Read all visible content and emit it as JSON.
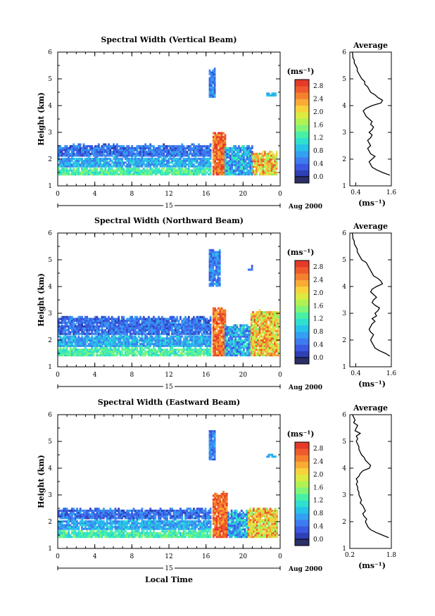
{
  "colors": {
    "scale": [
      "#2b2f66",
      "#2f3fb6",
      "#3a58e0",
      "#3f7bf0",
      "#34a0f2",
      "#27c3e8",
      "#2fe0cf",
      "#47f0a5",
      "#7ff579",
      "#b0f253",
      "#dcea3f",
      "#f7d23d",
      "#f9ab35",
      "#f5812f",
      "#ee5a2c",
      "#e53a2a"
    ],
    "axis": "#000000",
    "empty": "#ffffff"
  },
  "chart_data": [
    {
      "type": "heatmap",
      "id": "vertical",
      "title": "Spectral Width (Vertical Beam)",
      "ylabel": "Height (km)",
      "x_ticks": [
        "0",
        "4",
        "8",
        "12",
        "16",
        "20",
        "0"
      ],
      "x_range": [
        0,
        24
      ],
      "y_ticks": [
        "1",
        "2",
        "3",
        "4",
        "5",
        "6"
      ],
      "y_range": [
        1,
        6
      ],
      "date_label": "15",
      "month_label": "Aug 2000",
      "xlabel": "",
      "colorbar": {
        "unit": "(ms⁻¹)",
        "ticks": [
          "2.8",
          "2.4",
          "2.0",
          "1.6",
          "1.2",
          "0.8",
          "0.4",
          "0.0"
        ],
        "range": [
          0,
          3.0
        ]
      },
      "average": {
        "title": "Average",
        "unit": "(ms⁻¹)",
        "x_ticks": [
          "0.4",
          "1.6"
        ],
        "x_range": [
          0.2,
          1.6
        ],
        "heights": [
          1.4,
          1.5,
          1.6,
          1.7,
          1.8,
          1.9,
          2.0,
          2.1,
          2.2,
          2.3,
          2.4,
          2.5,
          2.6,
          2.7,
          2.8,
          2.9,
          3.0,
          3.1,
          3.2,
          3.3,
          3.4,
          3.5,
          3.6,
          3.7,
          3.8,
          3.9,
          4.0,
          4.1,
          4.2,
          4.3,
          4.4,
          4.5,
          4.6,
          4.7,
          4.8,
          4.9,
          5.0,
          5.1,
          5.2,
          5.3,
          5.4,
          5.5,
          5.6,
          5.7,
          5.8,
          5.9,
          6.0
        ],
        "values": [
          1.55,
          1.3,
          1.1,
          0.95,
          0.9,
          0.85,
          0.95,
          1.05,
          0.9,
          0.85,
          0.8,
          0.9,
          0.85,
          0.8,
          0.9,
          0.95,
          0.85,
          0.95,
          1.0,
          0.9,
          0.95,
          0.85,
          0.75,
          0.7,
          0.65,
          0.75,
          0.95,
          1.25,
          1.3,
          1.15,
          1.05,
          0.9,
          0.85,
          0.8,
          0.7,
          0.7,
          0.6,
          0.55,
          0.5,
          0.45,
          0.45,
          0.4,
          0.35,
          0.35,
          0.3,
          0.3,
          0.28
        ]
      },
      "layers": [
        {
          "t0": 0,
          "t1": 16.5,
          "h0": 1.4,
          "h1": 1.7,
          "v0": 1.1,
          "v1": 1.7
        },
        {
          "t0": 0,
          "t1": 16.5,
          "h0": 1.7,
          "h1": 2.1,
          "v0": 0.6,
          "v1": 1.2
        },
        {
          "t0": 0,
          "t1": 16.5,
          "h0": 2.1,
          "h1": 2.55,
          "v0": 0.3,
          "v1": 0.9
        },
        {
          "t0": 16.7,
          "t1": 18.0,
          "h0": 1.4,
          "h1": 3.0,
          "v0": 2.3,
          "v1": 3.0
        },
        {
          "t0": 18.0,
          "t1": 21.0,
          "h0": 1.4,
          "h1": 2.5,
          "v0": 0.4,
          "v1": 1.4
        },
        {
          "t0": 21.0,
          "t1": 23.7,
          "h0": 1.4,
          "h1": 2.3,
          "v0": 1.6,
          "v1": 2.8
        },
        {
          "t0": 16.3,
          "t1": 17.0,
          "h0": 4.3,
          "h1": 5.4,
          "v0": 0.4,
          "v1": 1.0
        },
        {
          "t0": 22.5,
          "t1": 23.5,
          "h0": 4.35,
          "h1": 4.5,
          "v0": 0.8,
          "v1": 1.1
        }
      ]
    },
    {
      "type": "heatmap",
      "id": "northward",
      "title": "Spectral Width (Northward Beam)",
      "ylabel": "Height (km)",
      "x_ticks": [
        "0",
        "4",
        "8",
        "12",
        "16",
        "20",
        "0"
      ],
      "x_range": [
        0,
        24
      ],
      "y_ticks": [
        "1",
        "2",
        "3",
        "4",
        "5",
        "6"
      ],
      "y_range": [
        1,
        6
      ],
      "date_label": "15",
      "month_label": "Aug 2000",
      "xlabel": "",
      "colorbar": {
        "unit": "(ms⁻¹)",
        "ticks": [
          "2.8",
          "2.4",
          "2.0",
          "1.6",
          "1.2",
          "0.8",
          "0.4",
          "0.0"
        ],
        "range": [
          0,
          3.0
        ]
      },
      "average": {
        "title": "Average",
        "unit": "(ms⁻¹)",
        "x_ticks": [
          "0.4",
          "1.6"
        ],
        "x_range": [
          0.2,
          1.6
        ],
        "heights": [
          1.4,
          1.5,
          1.6,
          1.7,
          1.8,
          1.9,
          2.0,
          2.1,
          2.2,
          2.3,
          2.4,
          2.5,
          2.6,
          2.7,
          2.8,
          2.9,
          3.0,
          3.1,
          3.2,
          3.3,
          3.4,
          3.5,
          3.6,
          3.7,
          3.8,
          3.9,
          4.0,
          4.1,
          4.2,
          4.3,
          4.4,
          4.5,
          4.6,
          4.7,
          4.8,
          4.9,
          5.0,
          5.1,
          5.2,
          5.3,
          5.4,
          5.5,
          5.6,
          5.7,
          5.8,
          5.9,
          6.0
        ],
        "values": [
          1.55,
          1.4,
          1.2,
          1.05,
          1.0,
          0.95,
          0.9,
          0.95,
          1.0,
          0.9,
          0.85,
          0.9,
          0.95,
          1.05,
          0.95,
          1.1,
          1.05,
          1.15,
          1.2,
          1.05,
          0.95,
          1.0,
          1.1,
          1.0,
          0.9,
          0.95,
          1.1,
          1.3,
          1.25,
          1.15,
          1.0,
          0.95,
          0.9,
          0.85,
          0.8,
          0.75,
          0.6,
          0.55,
          0.5,
          0.45,
          0.45,
          0.4,
          0.35,
          0.35,
          0.3,
          0.3,
          0.28
        ]
      },
      "layers": [
        {
          "t0": 0,
          "t1": 16.5,
          "h0": 1.4,
          "h1": 1.75,
          "v0": 1.1,
          "v1": 1.7
        },
        {
          "t0": 0,
          "t1": 16.5,
          "h0": 1.75,
          "h1": 2.2,
          "v0": 0.6,
          "v1": 1.2
        },
        {
          "t0": 0,
          "t1": 16.5,
          "h0": 2.2,
          "h1": 2.9,
          "v0": 0.3,
          "v1": 0.9
        },
        {
          "t0": 16.7,
          "t1": 18.0,
          "h0": 1.4,
          "h1": 3.2,
          "v0": 2.3,
          "v1": 3.0
        },
        {
          "t0": 18.0,
          "t1": 20.8,
          "h0": 1.4,
          "h1": 2.6,
          "v0": 0.4,
          "v1": 1.4
        },
        {
          "t0": 20.8,
          "t1": 23.7,
          "h0": 1.4,
          "h1": 3.1,
          "v0": 1.6,
          "v1": 2.8
        },
        {
          "t0": 16.3,
          "t1": 17.5,
          "h0": 4.0,
          "h1": 5.4,
          "v0": 0.4,
          "v1": 1.0
        },
        {
          "t0": 20.5,
          "t1": 21.0,
          "h0": 4.6,
          "h1": 4.75,
          "v0": 0.4,
          "v1": 0.7
        }
      ]
    },
    {
      "type": "heatmap",
      "id": "eastward",
      "title": "Spectral Width (Eastward Beam)",
      "ylabel": "Height (km)",
      "x_ticks": [
        "0",
        "4",
        "8",
        "12",
        "16",
        "20",
        "0"
      ],
      "x_range": [
        0,
        24
      ],
      "y_ticks": [
        "1",
        "2",
        "3",
        "4",
        "5",
        "6"
      ],
      "y_range": [
        1,
        6
      ],
      "date_label": "15",
      "month_label": "Aug 2000",
      "xlabel": "Local Time",
      "colorbar": {
        "unit": "(ms⁻¹)",
        "ticks": [
          "2.8",
          "2.4",
          "2.0",
          "1.6",
          "1.2",
          "0.8",
          "0.4",
          "0.0"
        ],
        "range": [
          0,
          3.0
        ]
      },
      "average": {
        "title": "Average",
        "unit": "(ms⁻¹)",
        "x_ticks": [
          "0.2",
          "1.8"
        ],
        "x_range": [
          0.2,
          1.8
        ],
        "heights": [
          1.4,
          1.5,
          1.6,
          1.7,
          1.8,
          1.9,
          2.0,
          2.1,
          2.2,
          2.3,
          2.4,
          2.5,
          2.6,
          2.7,
          2.8,
          2.9,
          3.0,
          3.1,
          3.2,
          3.3,
          3.4,
          3.5,
          3.6,
          3.7,
          3.8,
          3.9,
          4.0,
          4.1,
          4.2,
          4.3,
          4.4,
          4.5,
          4.6,
          4.7,
          4.8,
          4.9,
          5.0,
          5.1,
          5.2,
          5.3,
          5.4,
          5.5,
          5.6,
          5.7,
          5.8,
          5.9,
          6.0
        ],
        "values": [
          1.7,
          1.45,
          1.2,
          1.0,
          0.9,
          0.85,
          0.8,
          0.85,
          0.75,
          0.7,
          0.8,
          0.75,
          0.7,
          0.6,
          0.65,
          0.6,
          0.55,
          0.55,
          0.5,
          0.5,
          0.45,
          0.5,
          0.45,
          0.55,
          0.6,
          0.7,
          0.95,
          1.0,
          0.9,
          0.8,
          0.75,
          0.65,
          0.6,
          0.55,
          0.55,
          0.5,
          0.45,
          0.5,
          0.45,
          0.6,
          0.4,
          0.45,
          0.5,
          0.35,
          0.4,
          0.35,
          0.3
        ]
      },
      "layers": [
        {
          "t0": 0,
          "t1": 16.5,
          "h0": 1.4,
          "h1": 1.7,
          "v0": 1.1,
          "v1": 1.7
        },
        {
          "t0": 0,
          "t1": 16.5,
          "h0": 1.7,
          "h1": 2.1,
          "v0": 0.6,
          "v1": 1.2
        },
        {
          "t0": 0,
          "t1": 16.5,
          "h0": 2.1,
          "h1": 2.5,
          "v0": 0.3,
          "v1": 0.9
        },
        {
          "t0": 16.7,
          "t1": 18.3,
          "h0": 1.4,
          "h1": 3.1,
          "v0": 2.3,
          "v1": 3.0
        },
        {
          "t0": 18.3,
          "t1": 20.5,
          "h0": 1.4,
          "h1": 2.4,
          "v0": 0.4,
          "v1": 1.4
        },
        {
          "t0": 20.5,
          "t1": 23.7,
          "h0": 1.4,
          "h1": 2.5,
          "v0": 1.6,
          "v1": 2.8
        },
        {
          "t0": 16.3,
          "t1": 17.0,
          "h0": 4.3,
          "h1": 5.4,
          "v0": 0.4,
          "v1": 1.0
        },
        {
          "t0": 22.5,
          "t1": 23.5,
          "h0": 4.4,
          "h1": 4.55,
          "v0": 0.8,
          "v1": 1.1
        }
      ]
    }
  ]
}
